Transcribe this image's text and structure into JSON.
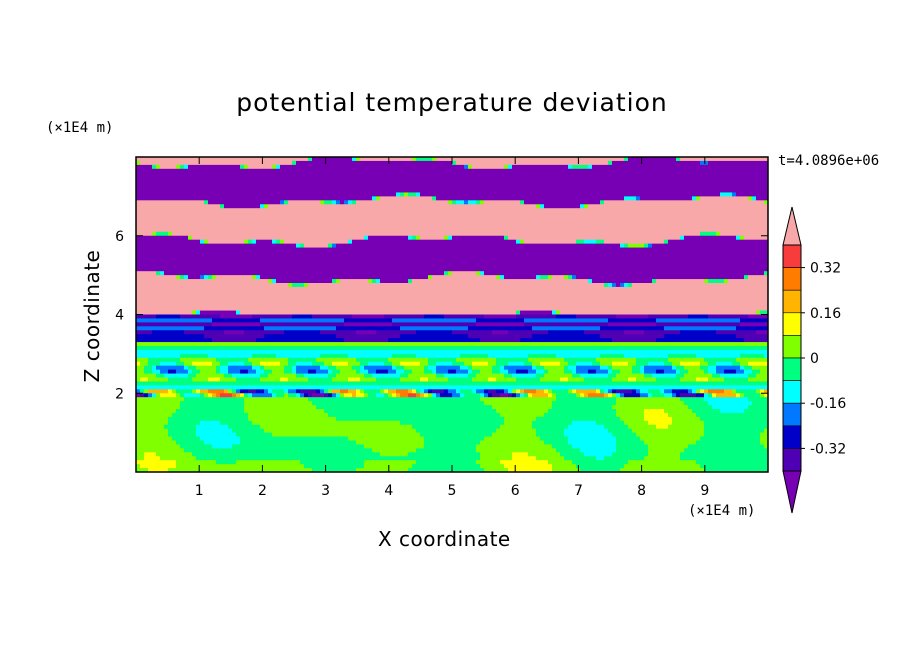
{
  "chart_data": {
    "type": "heatmap",
    "title": "potential temperature deviation",
    "xlabel": "X coordinate",
    "ylabel": "Z coordinate",
    "x_unit": "(×1E4 m)",
    "y_unit": "(×1E4 m)",
    "time_label": "t=4.0896e+06",
    "xlim": [
      0,
      10
    ],
    "ylim": [
      0,
      8
    ],
    "x_ticks": [
      "1",
      "2",
      "3",
      "4",
      "5",
      "6",
      "7",
      "8",
      "9"
    ],
    "y_ticks": [
      "2",
      "4",
      "6"
    ],
    "colorbar": {
      "levels": [
        -0.4,
        -0.32,
        -0.24,
        -0.16,
        -0.08,
        0,
        0.08,
        0.16,
        0.24,
        0.32,
        0.4
      ],
      "tick_labels": [
        "0.32",
        "0.16",
        "0",
        "-0.16",
        "-0.32"
      ],
      "tick_values": [
        0.32,
        0.16,
        0,
        -0.16,
        -0.32
      ],
      "colors_top_to_bottom": [
        "#f8a8a8",
        "#f83c3c",
        "#ff7c00",
        "#ffb400",
        "#ffff00",
        "#80ff00",
        "#00ff80",
        "#00ffff",
        "#0078ff",
        "#0000c8",
        "#5000b4",
        "#7800b4"
      ],
      "extend": "both"
    },
    "regions": [
      {
        "z_range": [
          0,
          1.9
        ],
        "dominant": "0 to 0.08 (green) with -0.08 to 0 patches",
        "value_range": [
          -0.08,
          0.08
        ]
      },
      {
        "z_range": [
          1.9,
          2.1
        ],
        "dominant": "mixed, sharp gradients",
        "value_range": [
          -0.32,
          0.32
        ]
      },
      {
        "z_range": [
          2.1,
          3.3
        ],
        "dominant": "mostly 0 to -0.08 with light streaks",
        "value_range": [
          -0.16,
          0.16
        ]
      },
      {
        "z_range": [
          3.3,
          4.0
        ],
        "dominant": "layered negative bands",
        "value_range": [
          -0.4,
          0.0
        ]
      },
      {
        "z_range": [
          4.0,
          8.0
        ],
        "dominant": "alternating strong positive/negative layers",
        "value_range": [
          -0.4,
          0.4
        ]
      }
    ]
  }
}
